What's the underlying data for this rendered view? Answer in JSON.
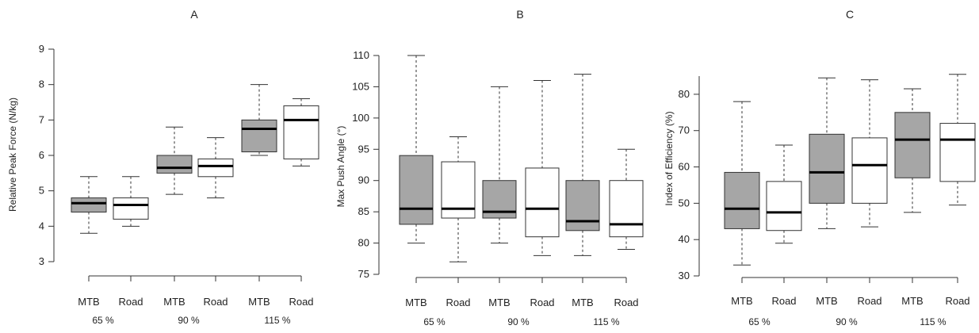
{
  "colors": {
    "mtb_fill": "#a6a6a6",
    "road_fill": "#ffffff",
    "stroke": "#333333"
  },
  "chart_data": [
    {
      "type": "box",
      "title": "A",
      "ylabel": "Relative Peak Force (N/kg)",
      "ylim": [
        3,
        9
      ],
      "yticks": [
        3,
        4,
        5,
        6,
        7,
        8,
        9
      ],
      "categories": [
        "MTB",
        "Road",
        "MTB",
        "Road",
        "MTB",
        "Road"
      ],
      "groups": [
        "65 %",
        "90 %",
        "115 %"
      ],
      "boxes": [
        {
          "label": "MTB",
          "min": 3.8,
          "q1": 4.4,
          "median": 4.65,
          "q3": 4.8,
          "max": 5.4
        },
        {
          "label": "Road",
          "min": 4.0,
          "q1": 4.2,
          "median": 4.6,
          "q3": 4.8,
          "max": 5.4
        },
        {
          "label": "MTB",
          "min": 4.9,
          "q1": 5.5,
          "median": 5.65,
          "q3": 6.0,
          "max": 6.8
        },
        {
          "label": "Road",
          "min": 4.8,
          "q1": 5.4,
          "median": 5.7,
          "q3": 5.9,
          "max": 6.5
        },
        {
          "label": "MTB",
          "min": 6.0,
          "q1": 6.1,
          "median": 6.75,
          "q3": 7.0,
          "max": 8.0
        },
        {
          "label": "Road",
          "min": 5.7,
          "q1": 5.9,
          "median": 7.0,
          "q3": 7.4,
          "max": 7.6
        }
      ]
    },
    {
      "type": "box",
      "title": "B",
      "ylabel": "Max Push Angle (°)",
      "ylim": [
        75,
        110
      ],
      "yticks": [
        75,
        80,
        85,
        90,
        95,
        100,
        105,
        110
      ],
      "categories": [
        "MTB",
        "Road",
        "MTB",
        "Road",
        "MTB",
        "Road"
      ],
      "groups": [
        "65 %",
        "90 %",
        "115 %"
      ],
      "boxes": [
        {
          "label": "MTB",
          "min": 80,
          "q1": 83,
          "median": 85.5,
          "q3": 94,
          "max": 110
        },
        {
          "label": "Road",
          "min": 77,
          "q1": 84,
          "median": 85.5,
          "q3": 93,
          "max": 97
        },
        {
          "label": "MTB",
          "min": 80,
          "q1": 84,
          "median": 85,
          "q3": 90,
          "max": 105
        },
        {
          "label": "Road",
          "min": 78,
          "q1": 81,
          "median": 85.5,
          "q3": 92,
          "max": 106
        },
        {
          "label": "MTB",
          "min": 78,
          "q1": 82,
          "median": 83.5,
          "q3": 90,
          "max": 107
        },
        {
          "label": "Road",
          "min": 79,
          "q1": 81,
          "median": 83,
          "q3": 90,
          "max": 95
        }
      ]
    },
    {
      "type": "box",
      "title": "C",
      "ylabel": "Index of Efficiency (%)",
      "ylim": [
        30,
        85
      ],
      "yticks": [
        30,
        40,
        50,
        60,
        70,
        80
      ],
      "categories": [
        "MTB",
        "Road",
        "MTB",
        "Road",
        "MTB",
        "Road"
      ],
      "groups": [
        "65 %",
        "90 %",
        "115 %"
      ],
      "boxes": [
        {
          "label": "MTB",
          "min": 33,
          "q1": 43,
          "median": 48.5,
          "q3": 58.5,
          "max": 78
        },
        {
          "label": "Road",
          "min": 39,
          "q1": 42.5,
          "median": 47.5,
          "q3": 56,
          "max": 66
        },
        {
          "label": "MTB",
          "min": 43,
          "q1": 50,
          "median": 58.5,
          "q3": 69,
          "max": 84.5
        },
        {
          "label": "Road",
          "min": 43.5,
          "q1": 50,
          "median": 60.5,
          "q3": 68,
          "max": 84
        },
        {
          "label": "MTB",
          "min": 47.5,
          "q1": 57,
          "median": 67.5,
          "q3": 75,
          "max": 81.5
        },
        {
          "label": "Road",
          "min": 49.5,
          "q1": 56,
          "median": 67.5,
          "q3": 72,
          "max": 85.5
        }
      ]
    }
  ]
}
